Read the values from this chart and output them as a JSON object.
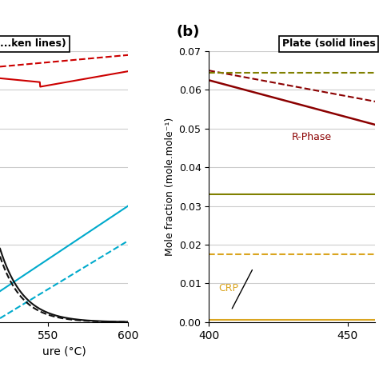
{
  "panel_a": {
    "title": "...ken lines)",
    "xlim": [
      520,
      600
    ],
    "xticks": [
      550,
      600
    ],
    "ylim": [
      0,
      0.07
    ],
    "xlabel_suffix": "ure (°C)"
  },
  "panel_b": {
    "title": "Plate (solid lines",
    "ylabel": "Mole fraction (mole.mole⁻¹)",
    "xlim": [
      400,
      460
    ],
    "xticks": [
      400,
      450
    ],
    "ylim": [
      0,
      0.07
    ],
    "yticks": [
      0,
      0.01,
      0.02,
      0.03,
      0.04,
      0.05,
      0.06,
      0.07
    ]
  },
  "bg_color": "#ffffff",
  "grid_color": "#cccccc",
  "label_b_text": "(b)"
}
